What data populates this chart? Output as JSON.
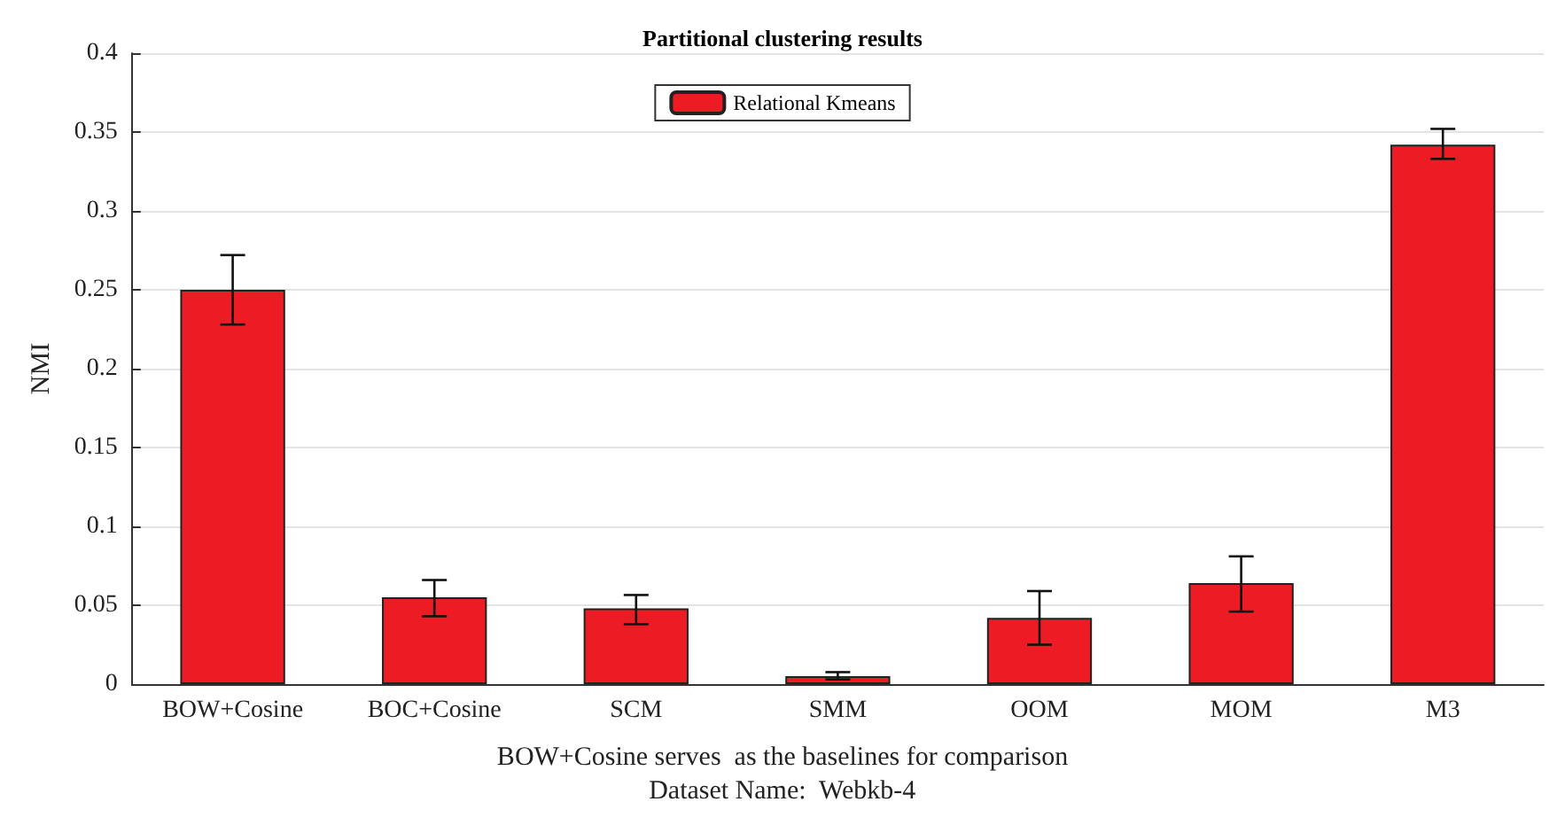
{
  "chart_data": {
    "type": "bar",
    "title": "Partitional clustering results",
    "ylabel": "NMI",
    "categories": [
      "BOW+Cosine",
      "BOC+Cosine",
      "SCM",
      "SMM",
      "OOM",
      "MOM",
      "M3"
    ],
    "series": [
      {
        "name": "Relational Kmeans",
        "color": "#ed1c24",
        "values": [
          0.25,
          0.055,
          0.048,
          0.005,
          0.042,
          0.064,
          0.342
        ],
        "errors": [
          [
            0.228,
            0.272
          ],
          [
            0.043,
            0.066
          ],
          [
            0.038,
            0.0565
          ],
          [
            0.003,
            0.0076
          ],
          [
            0.025,
            0.059
          ],
          [
            0.046,
            0.081
          ],
          [
            0.333,
            0.352
          ]
        ]
      }
    ],
    "ylim": [
      0,
      0.4
    ],
    "yticks": [
      0,
      0.05,
      0.1,
      0.15,
      0.2,
      0.25,
      0.3,
      0.35,
      0.4
    ],
    "grid": "y",
    "legend": "top",
    "annotations": [
      "BOW+Cosine serves  as the baselines for comparison",
      "Dataset Name:  Webkb-4"
    ]
  }
}
